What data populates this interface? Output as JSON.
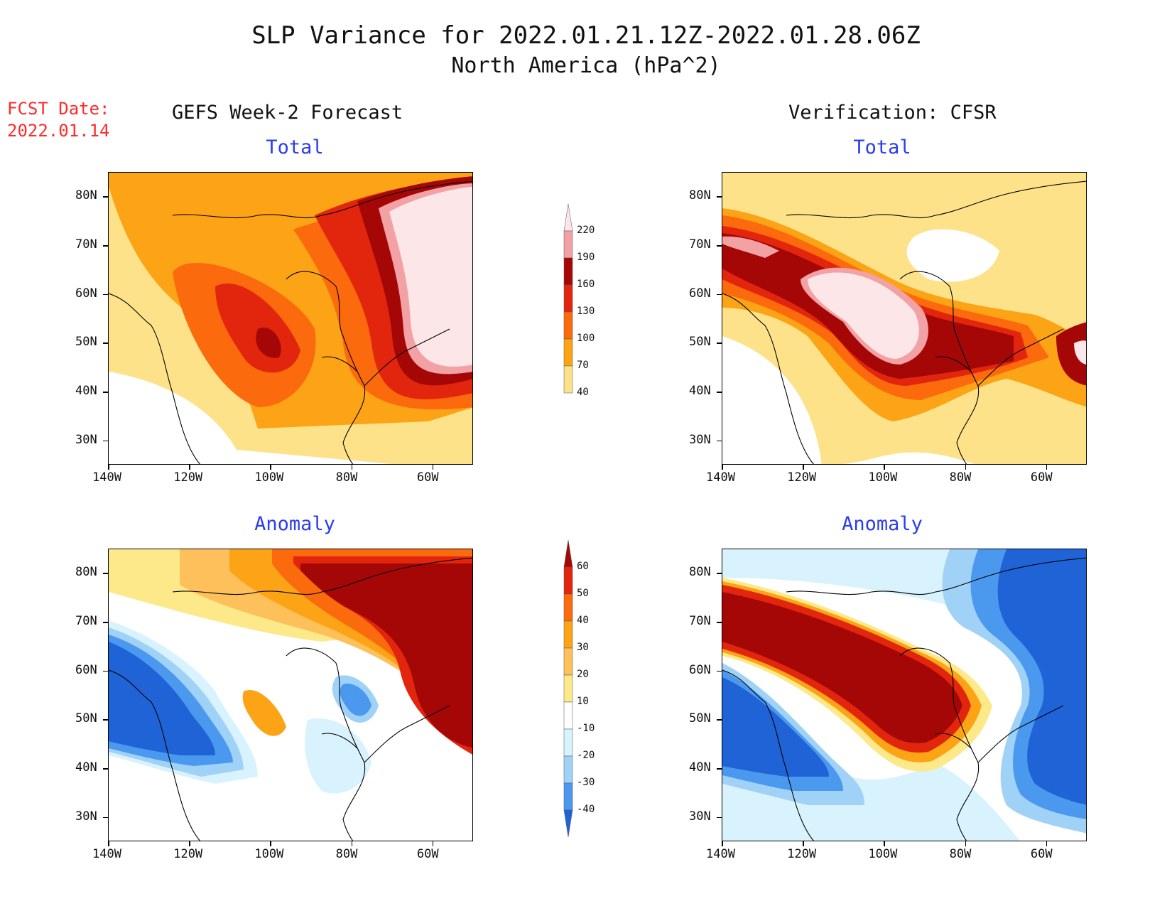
{
  "title": {
    "line1": "SLP Variance for 2022.01.21.12Z-2022.01.28.06Z",
    "line2": "North America (hPa^2)"
  },
  "fcst_date": {
    "line1": "FCST Date:",
    "line2": "2022.01.14"
  },
  "columns": {
    "left": "GEFS Week-2 Forecast",
    "right": "Verification: CFSR"
  },
  "panels": {
    "total": "Total",
    "anomaly": "Anomaly"
  },
  "axes": {
    "lat_labels": [
      "80N",
      "70N",
      "60N",
      "50N",
      "40N",
      "30N"
    ],
    "lon_labels": [
      "140W",
      "120W",
      "100W",
      "80W",
      "60W"
    ],
    "lat_range": [
      25,
      85
    ],
    "lon_range": [
      -140,
      -50
    ]
  },
  "colorbar_total": {
    "levels": [
      "40",
      "70",
      "100",
      "130",
      "160",
      "190",
      "220"
    ],
    "colors": [
      "#fbe28a",
      "#fca316",
      "#fb6a0c",
      "#e2260e",
      "#a50707",
      "#f2a1a5",
      "#fde6e8"
    ]
  },
  "colorbar_anomaly": {
    "levels": [
      "60",
      "50",
      "40",
      "30",
      "20",
      "10",
      "-10",
      "-20",
      "-30",
      "-40"
    ],
    "colors": [
      "#a50707",
      "#e2260e",
      "#fb6a0c",
      "#fca316",
      "#fdc05a",
      "#fde98a",
      "#ffffff",
      "#d8f3fd",
      "#a0d2f8",
      "#4a99ee",
      "#1f63d6"
    ]
  }
}
